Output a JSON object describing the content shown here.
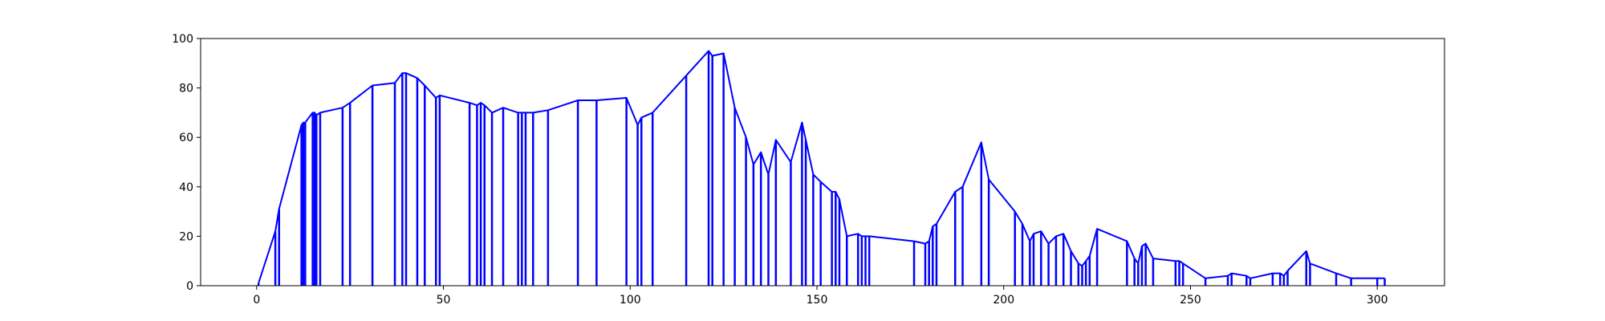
{
  "chart_data": {
    "type": "line",
    "title": "",
    "xlabel": "",
    "ylabel": "",
    "xlim": [
      -15,
      318
    ],
    "ylim": [
      0,
      100
    ],
    "x_ticks": [
      0,
      50,
      100,
      150,
      200,
      250,
      300
    ],
    "y_ticks": [
      0,
      20,
      40,
      60,
      80,
      100
    ],
    "grid": false,
    "legend": "none",
    "series_color": "#0000ff",
    "drop_lines": true,
    "series": [
      {
        "x": [
          0.5,
          5,
          6,
          12,
          12.5,
          13,
          15,
          15.5,
          16,
          17,
          23,
          25,
          31,
          37,
          39,
          40,
          43,
          45,
          48,
          49,
          57,
          59,
          60,
          61,
          63,
          66,
          70,
          71,
          72,
          74,
          78,
          86,
          91,
          99,
          102,
          103,
          106,
          115,
          121,
          122,
          125,
          128,
          131,
          133,
          135,
          137,
          139,
          143,
          146,
          147,
          149,
          151,
          154,
          155,
          156,
          158,
          161,
          162,
          163,
          164,
          176,
          179,
          180,
          181,
          182,
          187,
          189,
          194,
          196,
          203,
          205,
          207,
          208,
          210,
          212,
          214,
          216,
          218,
          220,
          221,
          222,
          223,
          225,
          233,
          235,
          236,
          237,
          238,
          240,
          246,
          247,
          248,
          254,
          260,
          261,
          265,
          266,
          272,
          274,
          275,
          276,
          281,
          282,
          289,
          293,
          300,
          302
        ],
        "y": [
          1,
          22,
          31,
          65,
          66,
          66,
          70,
          70,
          69,
          70,
          72,
          74,
          81,
          82,
          86,
          86,
          84,
          81,
          76,
          77,
          74,
          73,
          74,
          73,
          70,
          72,
          70,
          70,
          70,
          70,
          71,
          75,
          75,
          76,
          65,
          68,
          70,
          85,
          95,
          93,
          94,
          72,
          60,
          49,
          54,
          45,
          59,
          50,
          66,
          59,
          45,
          42,
          38,
          38,
          35,
          20,
          21,
          20,
          20,
          20,
          18,
          17,
          18,
          24,
          25,
          38,
          40,
          58,
          43,
          30,
          25,
          18,
          21,
          22,
          17,
          20,
          21,
          14,
          9,
          8,
          10,
          12,
          23,
          18,
          11,
          9,
          16,
          17,
          11,
          10,
          10,
          9,
          3,
          4,
          5,
          4,
          3,
          5,
          5,
          4,
          6,
          14,
          9,
          5,
          3,
          3,
          3
        ]
      }
    ]
  }
}
